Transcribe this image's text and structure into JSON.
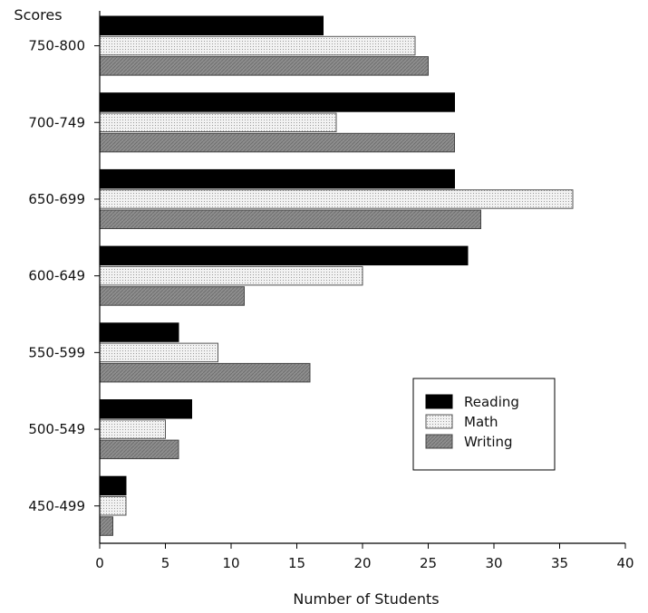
{
  "chart_data": {
    "type": "bar",
    "orientation": "horizontal",
    "title": "",
    "xlabel": "Number of Students",
    "ylabel": "Scores",
    "xlim": [
      0,
      40
    ],
    "xticks": [
      0,
      5,
      10,
      15,
      20,
      25,
      30,
      35,
      40
    ],
    "categories": [
      "750-800",
      "700-749",
      "650-699",
      "600-649",
      "550-599",
      "500-549",
      "450-499"
    ],
    "series": [
      {
        "name": "Reading",
        "color": "#000000",
        "values": [
          17,
          27,
          27,
          28,
          6,
          7,
          2
        ]
      },
      {
        "name": "Math",
        "color": "#e8e8e8",
        "values": [
          24,
          18,
          36,
          20,
          9,
          5,
          2
        ]
      },
      {
        "name": "Writing",
        "color": "#8c8c8c",
        "values": [
          25,
          27,
          29,
          11,
          16,
          6,
          1
        ]
      }
    ],
    "grid": false,
    "legend_position": "lower-right"
  }
}
